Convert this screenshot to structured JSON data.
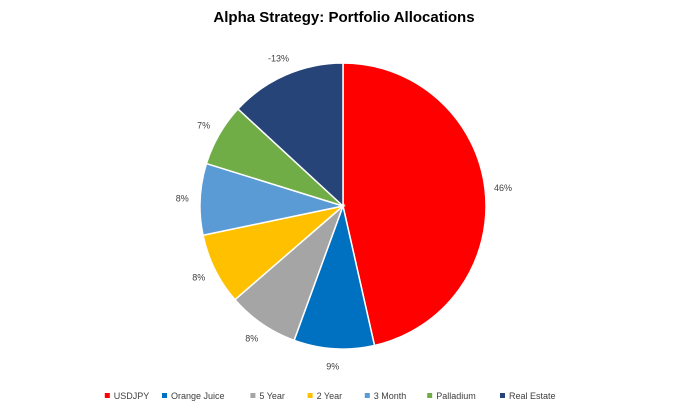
{
  "chart_data": {
    "type": "pie",
    "title": "Alpha Strategy: Portfolio Allocations",
    "categories": [
      "USDJPY",
      "Orange Juice",
      "5 Year",
      "2 Year",
      "3 Month",
      "Palladium",
      "Real Estate"
    ],
    "values": [
      46,
      9,
      8,
      8,
      8,
      7,
      13
    ],
    "labels": [
      "46%",
      "9%",
      "8%",
      "8%",
      "8%",
      "7%",
      "-13%"
    ],
    "colors": [
      "#ff0000",
      "#0070c0",
      "#a5a5a5",
      "#ffc000",
      "#5b9bd5",
      "#70ad47",
      "#264478"
    ],
    "legend": "bottom"
  }
}
